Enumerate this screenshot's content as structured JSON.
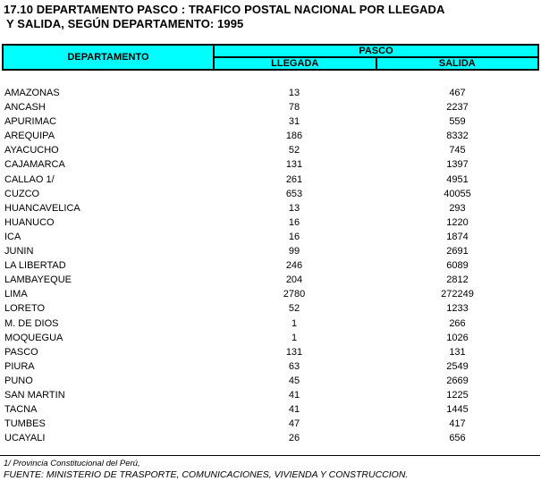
{
  "title": {
    "line1": "17.10 DEPARTAMENTO PASCO : TRAFICO POSTAL NACIONAL POR LLEGADA",
    "line2": "Y SALIDA, SEGÚN DEPARTAMENTO: 1995"
  },
  "table": {
    "header": {
      "departamento": "DEPARTAMENTO",
      "group": "PASCO",
      "llegada": "LLEGADA",
      "salida": "SALIDA"
    },
    "rows": [
      {
        "departamento": "AMAZONAS",
        "llegada": 13,
        "salida": 467
      },
      {
        "departamento": "ANCASH",
        "llegada": 78,
        "salida": 2237
      },
      {
        "departamento": "APURIMAC",
        "llegada": 31,
        "salida": 559
      },
      {
        "departamento": "AREQUIPA",
        "llegada": 186,
        "salida": 8332
      },
      {
        "departamento": "AYACUCHO",
        "llegada": 52,
        "salida": 745
      },
      {
        "departamento": "CAJAMARCA",
        "llegada": 131,
        "salida": 1397
      },
      {
        "departamento": "CALLAO 1/",
        "llegada": 261,
        "salida": 4951
      },
      {
        "departamento": "CUZCO",
        "llegada": 653,
        "salida": 40055
      },
      {
        "departamento": "HUANCAVELICA",
        "llegada": 13,
        "salida": 293
      },
      {
        "departamento": "HUANUCO",
        "llegada": 16,
        "salida": 1220
      },
      {
        "departamento": "ICA",
        "llegada": 16,
        "salida": 1874
      },
      {
        "departamento": "JUNIN",
        "llegada": 99,
        "salida": 2691
      },
      {
        "departamento": "LA LIBERTAD",
        "llegada": 246,
        "salida": 6089
      },
      {
        "departamento": "LAMBAYEQUE",
        "llegada": 204,
        "salida": 2812
      },
      {
        "departamento": "LIMA",
        "llegada": 2780,
        "salida": 272249
      },
      {
        "departamento": "LORETO",
        "llegada": 52,
        "salida": 1233
      },
      {
        "departamento": "M. DE DIOS",
        "llegada": 1,
        "salida": 266
      },
      {
        "departamento": "MOQUEGUA",
        "llegada": 1,
        "salida": 1026
      },
      {
        "departamento": "PASCO",
        "llegada": 131,
        "salida": 131
      },
      {
        "departamento": "PIURA",
        "llegada": 63,
        "salida": 2549
      },
      {
        "departamento": "PUNO",
        "llegada": 45,
        "salida": 2669
      },
      {
        "departamento": "SAN MARTIN",
        "llegada": 41,
        "salida": 1225
      },
      {
        "departamento": "TACNA",
        "llegada": 41,
        "salida": 1445
      },
      {
        "departamento": "TUMBES",
        "llegada": 47,
        "salida": 417
      },
      {
        "departamento": "UCAYALI",
        "llegada": 26,
        "salida": 656
      }
    ]
  },
  "footnotes": {
    "note1": "1/ Provincia Constitucional del Perú,",
    "fuente": "FUENTE: MINISTERIO DE TRASPORTE, COMUNICACIONES, VIVIENDA Y CONSTRUCCION."
  },
  "colors": {
    "header_bg": "#00FFFF",
    "border": "#000000",
    "text": "#000000",
    "background": "#FFFFFF"
  }
}
